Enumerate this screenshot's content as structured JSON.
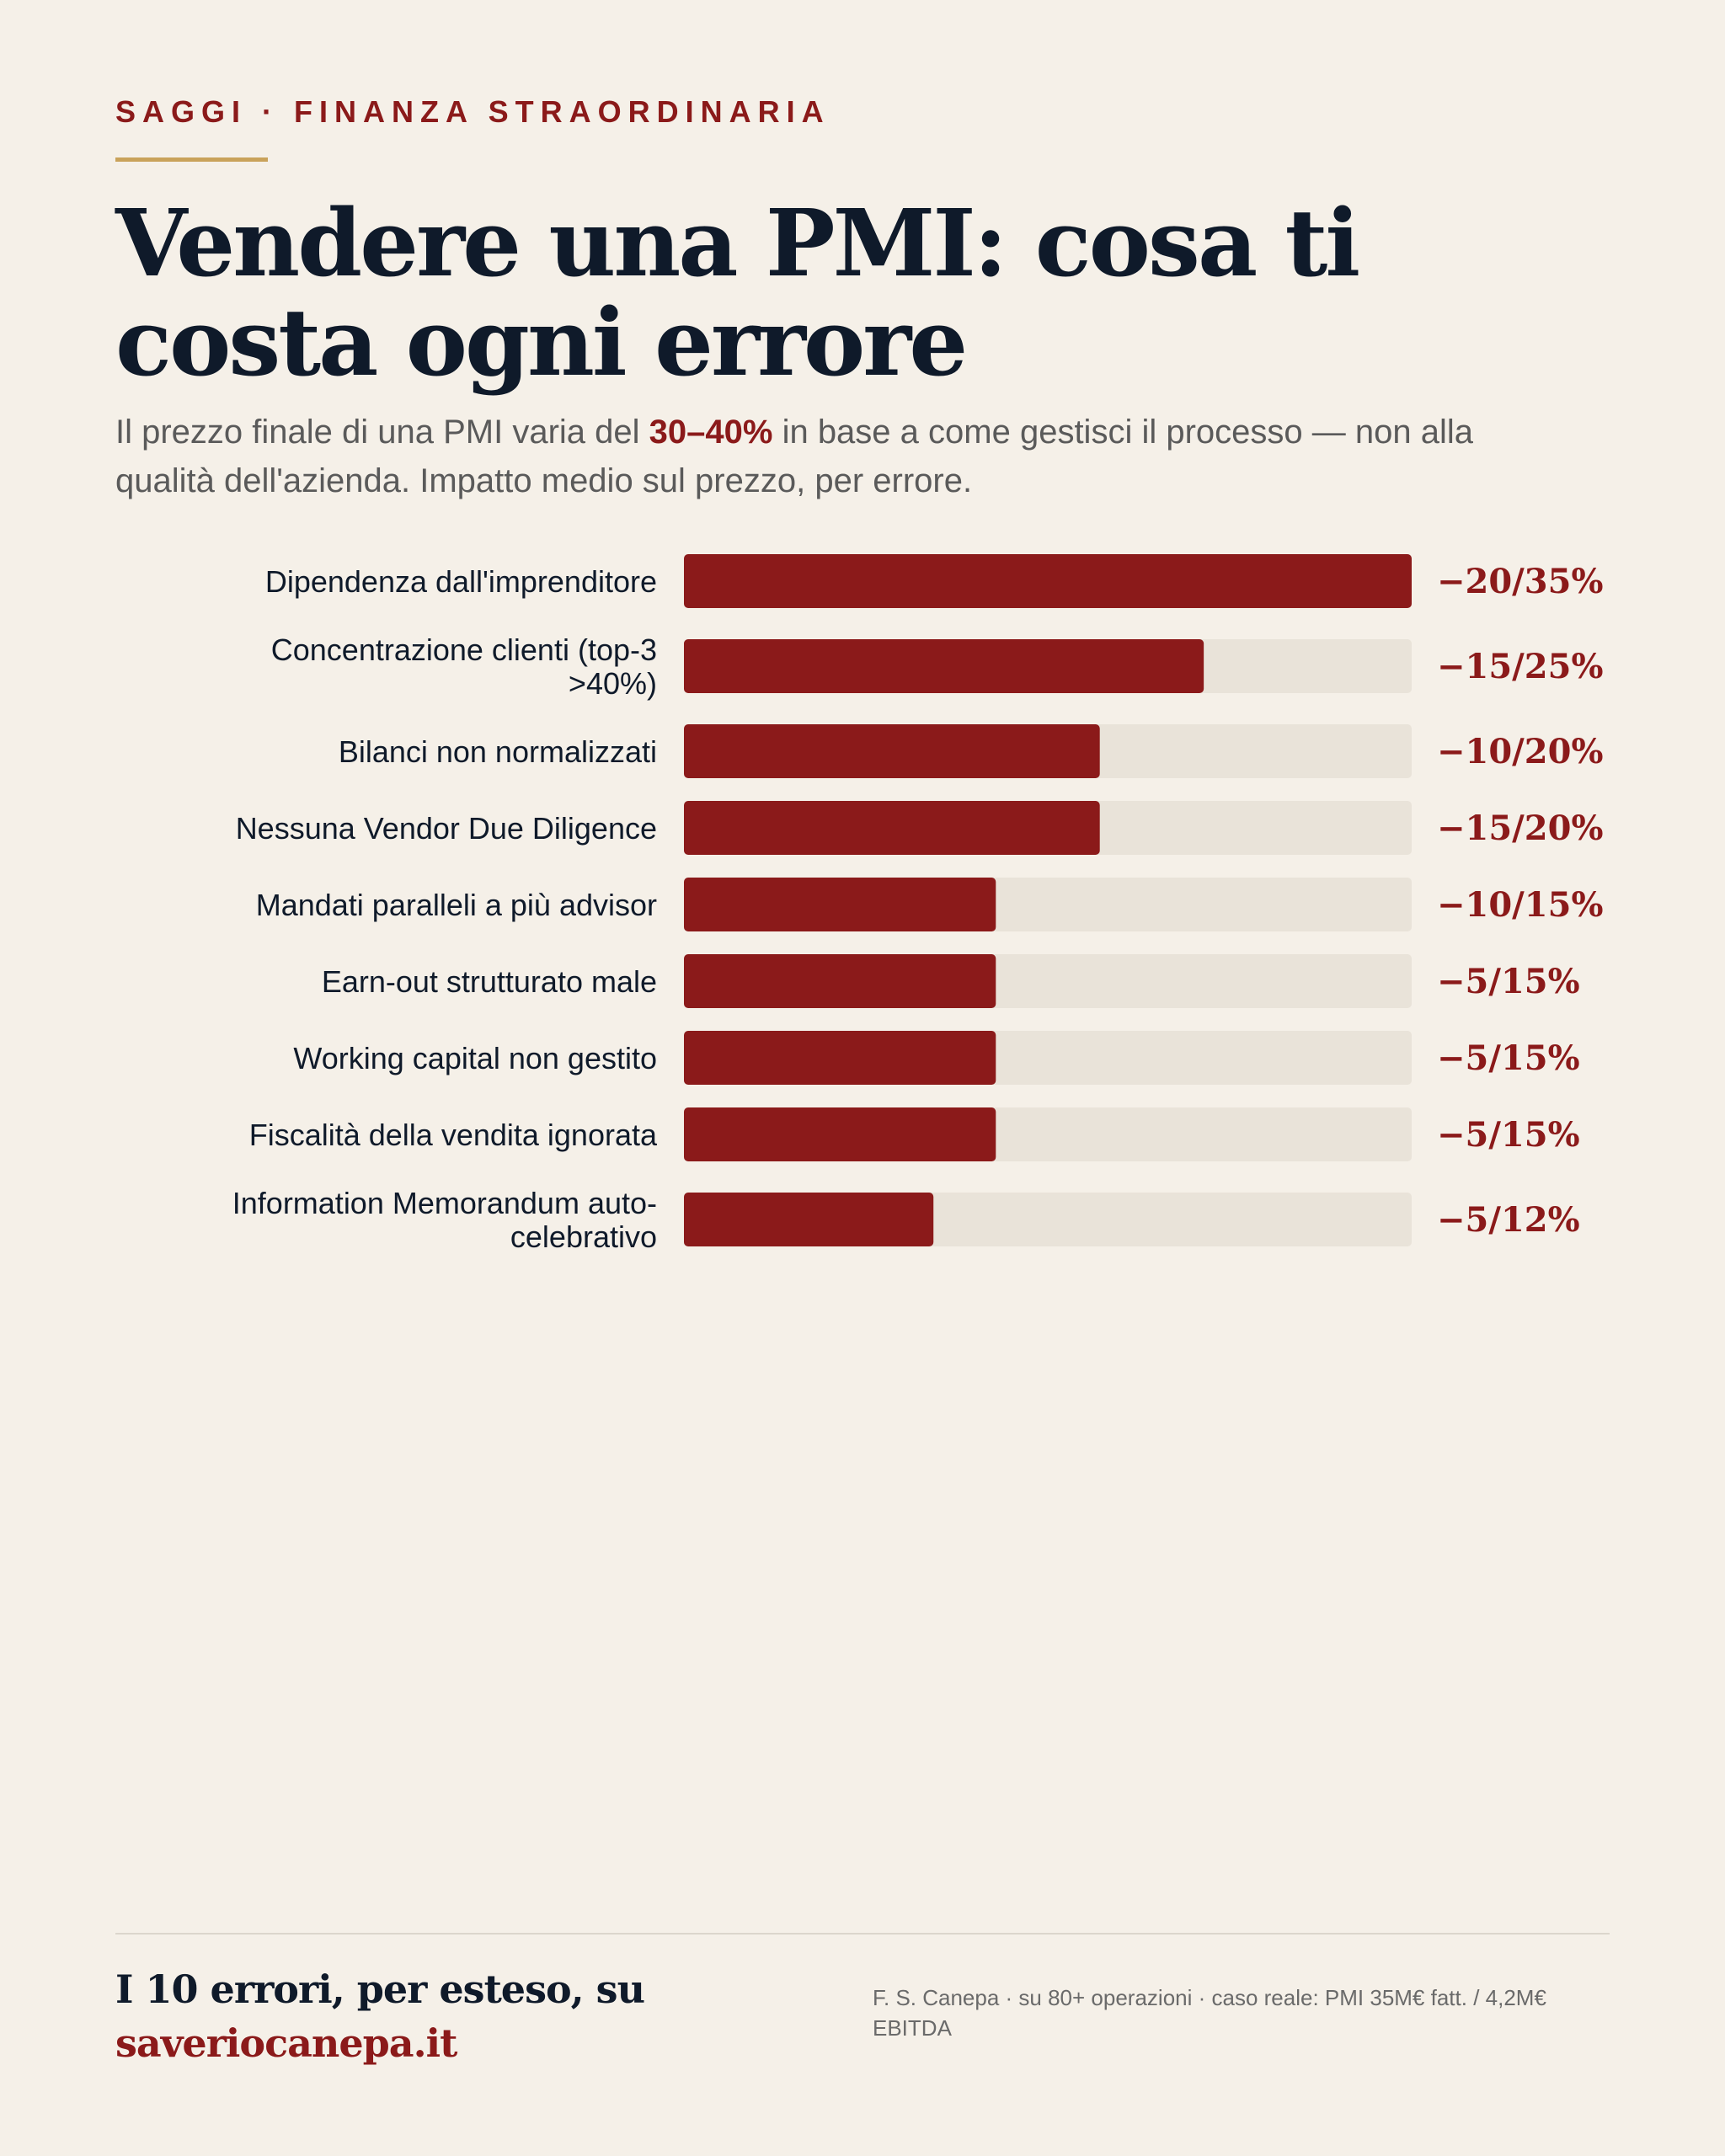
{
  "header": {
    "kicker": "SAGGI · FINANZA STRAORDINARIA",
    "title": "Vendere una PMI: cosa ti costa ogni errore",
    "subtitle_before": "Il prezzo finale di una PMI varia del ",
    "subtitle_highlight": "30–40%",
    "subtitle_after": " in base a come gestisci il processo — non alla qualità dell'azienda. Impatto medio sul prezzo, per errore."
  },
  "colors": {
    "background": "#f5f0e8",
    "bar_fill": "#8b1a1a",
    "bar_track": "#e9e3d9",
    "accent_gold": "#c9a25a",
    "text_dark": "#0f1a2a"
  },
  "chart_data": {
    "type": "bar",
    "orientation": "horizontal",
    "categories": [
      [
        "Dipendenza dall'imprenditore"
      ],
      [
        "Concentrazione clienti (top-3",
        ">40%)"
      ],
      [
        "Bilanci non normalizzati"
      ],
      [
        "Nessuna Vendor Due Diligence"
      ],
      [
        "Mandati paralleli a più advisor"
      ],
      [
        "Earn-out strutturato male"
      ],
      [
        "Working capital non gestito"
      ],
      [
        "Fiscalità della vendita ignorata"
      ],
      [
        "Information Memorandum auto-",
        "celebrativo"
      ]
    ],
    "value_labels": [
      "−20/35%",
      "−15/25%",
      "−10/20%",
      "−15/20%",
      "−10/15%",
      "−5/15%",
      "−5/15%",
      "−5/15%",
      "−5/12%"
    ],
    "values": [
      35,
      25,
      20,
      20,
      15,
      15,
      15,
      15,
      12
    ],
    "xlim": [
      0,
      35
    ],
    "grid": false,
    "legend": "none"
  },
  "footer": {
    "cta_line1": "I 10 errori, per esteso, su",
    "cta_link": "saveriocanepa.it",
    "credit": "F. S. Canepa · su 80+ operazioni · caso reale: PMI 35M€ fatt. / 4,2M€ EBITDA"
  }
}
